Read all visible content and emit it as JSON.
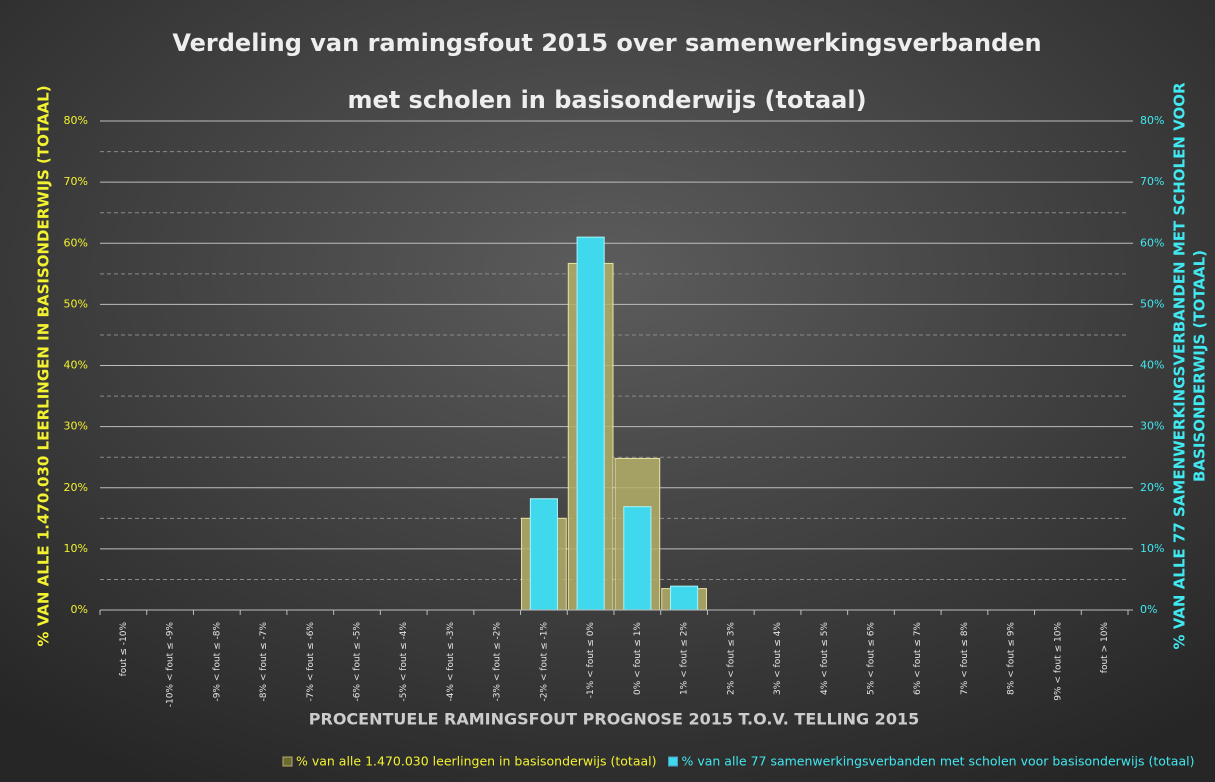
{
  "chart_data": {
    "type": "bar",
    "title": [
      "Verdeling van ramingsfout 2015 over samenwerkingsverbanden",
      "met scholen in basisonderwijs (totaal)"
    ],
    "x_label": "PROCENTUELE RAMINGSFOUT PROGNOSE 2015 T.O.V. TELLING 2015",
    "y_label": "% VAN ALLE 1.470.030 LEERLINGEN IN BASISONDERWIJS (TOTAAL)",
    "y2_label": [
      "% VAN ALLE 77 SAMENWERKINGSVERBANDEN MET SCHOLEN VOOR",
      "BASISONDERWIJS (TOTAAL)"
    ],
    "categories": [
      "fout ≤ -10%",
      "-10% < fout ≤ -9%",
      "-9% < fout ≤ -8%",
      "-8% < fout ≤ -7%",
      "-7% < fout ≤ -6%",
      "-6% < fout ≤ -5%",
      "-5% < fout ≤ -4%",
      "-4% < fout ≤ -3%",
      "-3% < fout ≤ -2%",
      "-2% < fout ≤ -1%",
      "-1% < fout ≤ 0%",
      "0% < fout ≤ 1%",
      "1% < fout ≤ 2%",
      "2% < fout ≤ 3%",
      "3% < fout ≤ 4%",
      "4% < fout ≤ 5%",
      "5% < fout ≤ 6%",
      "6% < fout ≤ 7%",
      "7% < fout ≤ 8%",
      "8% < fout ≤ 9%",
      "9% < fout ≤ 10%",
      "fout > 10%"
    ],
    "series": [
      {
        "name": "% van alle 1.470.030 leerlingen in basisonderwijs (totaal)",
        "color": "#b5b06a",
        "values": [
          0,
          0,
          0,
          0,
          0,
          0,
          0,
          0,
          0,
          15,
          56.7,
          24.8,
          3.5,
          0,
          0,
          0,
          0,
          0,
          0,
          0,
          0,
          0
        ]
      },
      {
        "name": "% van alle 77 samenwerkingsverbanden met scholen voor basisonderwijs (totaal)",
        "color": "#3fd8ec",
        "axis": "y2",
        "values": [
          0,
          0,
          0,
          0,
          0,
          0,
          0,
          0,
          0,
          18.2,
          61,
          16.9,
          3.9,
          0,
          0,
          0,
          0,
          0,
          0,
          0,
          0,
          0
        ]
      }
    ],
    "ylim": [
      0,
      80
    ],
    "yticks": [
      {
        "value": 0,
        "label": "0%"
      },
      {
        "value": 10,
        "label": "10%"
      },
      {
        "value": 20,
        "label": "20%"
      },
      {
        "value": 30,
        "label": "30%"
      },
      {
        "value": 40,
        "label": "40%"
      },
      {
        "value": 50,
        "label": "50%"
      },
      {
        "value": 60,
        "label": "60%"
      },
      {
        "value": 70,
        "label": "70%"
      },
      {
        "value": 80,
        "label": "80%"
      }
    ],
    "y2lim": [
      0,
      80
    ],
    "y2ticks": [
      {
        "value": 0,
        "label": "0%"
      },
      {
        "value": 10,
        "label": "10%"
      },
      {
        "value": 20,
        "label": "20%"
      },
      {
        "value": 30,
        "label": "30%"
      },
      {
        "value": 40,
        "label": "40%"
      },
      {
        "value": 50,
        "label": "50%"
      },
      {
        "value": 60,
        "label": "60%"
      },
      {
        "value": 70,
        "label": "70%"
      },
      {
        "value": 80,
        "label": "80%"
      }
    ],
    "grid": true
  }
}
